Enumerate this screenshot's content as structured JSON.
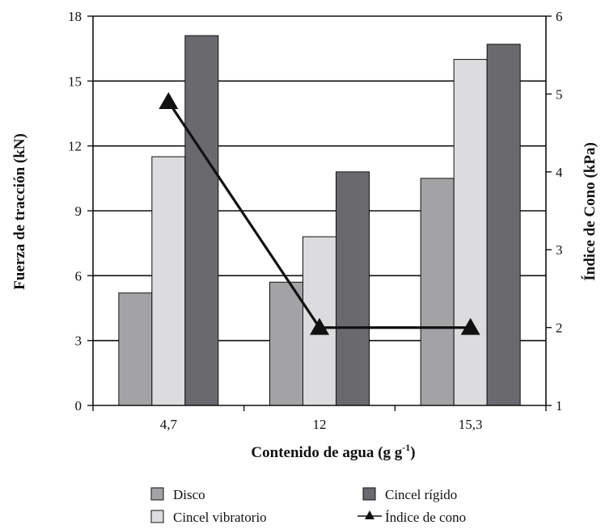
{
  "chart_data": {
    "type": "bar",
    "xlabel": "Contenido de agua (g g",
    "xlabel_sup": "-1",
    "xlabel_suffix": ")",
    "ylabel": "Fuerza de tracción (kN)",
    "y2label": "Índice de Cono (kPa)",
    "categories": [
      "4,7",
      "12",
      "15,3"
    ],
    "ylim": [
      0,
      18
    ],
    "yticks": [
      0,
      3,
      6,
      9,
      12,
      15,
      18
    ],
    "y2lim": [
      1,
      6
    ],
    "y2ticks": [
      1,
      2,
      3,
      4,
      5,
      6
    ],
    "grid": true,
    "legend_placement": "bottom",
    "series": [
      {
        "name": "Disco",
        "type": "bar",
        "color": "#a3a3a6",
        "values": [
          5.2,
          5.7,
          10.5
        ]
      },
      {
        "name": "Cincel vibratorio",
        "type": "bar",
        "color": "#dcdcde",
        "values": [
          11.5,
          7.8,
          16.0
        ]
      },
      {
        "name": "Cincel rígido",
        "type": "bar",
        "color": "#6a6a6e",
        "values": [
          17.1,
          10.8,
          16.7
        ]
      },
      {
        "name": "Índice de cono",
        "type": "line",
        "axis": "y2",
        "marker": "triangle",
        "color": "#111111",
        "values": [
          4.9,
          2.0,
          2.0
        ]
      }
    ]
  }
}
